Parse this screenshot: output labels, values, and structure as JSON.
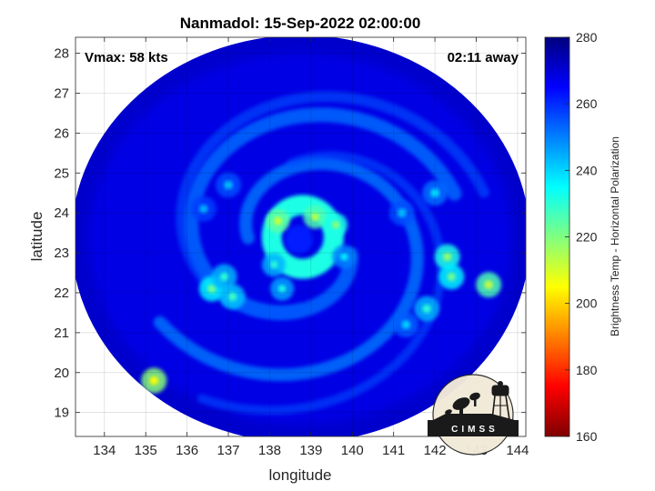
{
  "chart_data": {
    "type": "heatmap",
    "title": "Nanmadol: 15-Sep-2022 02:00:00",
    "xlabel": "longitude",
    "ylabel": "latitude",
    "xlim": [
      133.3,
      144.2
    ],
    "ylim": [
      18.4,
      28.4
    ],
    "x_ticks": [
      134,
      135,
      136,
      137,
      138,
      139,
      140,
      141,
      142,
      143,
      144
    ],
    "y_ticks": [
      19,
      20,
      21,
      22,
      23,
      24,
      25,
      26,
      27,
      28
    ],
    "grid": true,
    "annotations": {
      "vmax": "Vmax: 58 kts",
      "time_offset": "02:11 away"
    },
    "colorbar": {
      "label": "Brightness Temp - Horizontal Polarization",
      "range": [
        160,
        280
      ],
      "ticks": [
        160,
        180,
        200,
        220,
        240,
        260,
        280
      ],
      "colormap": "jet",
      "colors": [
        "#7f0000",
        "#ff0000",
        "#ff8000",
        "#ffff00",
        "#80ff80",
        "#00ffff",
        "#0080ff",
        "#0000ff",
        "#00007f"
      ]
    },
    "swath": {
      "center_lon": 138.75,
      "center_lat": 23.35,
      "radius_lon": 5.55,
      "radius_lat": 5.1
    },
    "storm_center": {
      "lon": 138.75,
      "lat": 23.3
    },
    "background_temp": 268,
    "features": [
      {
        "kind": "eyewall",
        "lon": 138.8,
        "lat": 23.4,
        "radius_lon": 0.75,
        "radius_lat": 0.8,
        "temp": 232
      },
      {
        "kind": "hotspot",
        "lon": 138.2,
        "lat": 23.8,
        "temp": 210
      },
      {
        "kind": "hotspot",
        "lon": 139.1,
        "lat": 23.9,
        "temp": 212
      },
      {
        "kind": "hotspot",
        "lon": 139.6,
        "lat": 23.7,
        "temp": 218
      },
      {
        "kind": "hotspot",
        "lon": 138.1,
        "lat": 22.7,
        "temp": 230
      },
      {
        "kind": "hotspot",
        "lon": 139.8,
        "lat": 22.9,
        "temp": 236
      },
      {
        "kind": "hotspot",
        "lon": 138.3,
        "lat": 22.1,
        "temp": 232
      },
      {
        "kind": "band",
        "lon": 136.6,
        "lat": 22.1,
        "temp": 222
      },
      {
        "kind": "band",
        "lon": 136.9,
        "lat": 22.4,
        "temp": 230
      },
      {
        "kind": "band",
        "lon": 137.1,
        "lat": 21.9,
        "temp": 228
      },
      {
        "kind": "band",
        "lon": 142.3,
        "lat": 22.9,
        "temp": 218
      },
      {
        "kind": "band",
        "lon": 142.4,
        "lat": 22.4,
        "temp": 222
      },
      {
        "kind": "band",
        "lon": 143.3,
        "lat": 22.2,
        "temp": 212
      },
      {
        "kind": "band",
        "lon": 141.8,
        "lat": 21.6,
        "temp": 230
      },
      {
        "kind": "band",
        "lon": 141.3,
        "lat": 21.2,
        "temp": 240
      },
      {
        "kind": "band",
        "lon": 142.0,
        "lat": 24.5,
        "temp": 238
      },
      {
        "kind": "band",
        "lon": 141.2,
        "lat": 24.0,
        "temp": 242
      },
      {
        "kind": "band",
        "lon": 135.2,
        "lat": 19.8,
        "temp": 205
      },
      {
        "kind": "band",
        "lon": 137.0,
        "lat": 24.7,
        "temp": 242
      },
      {
        "kind": "band",
        "lon": 136.4,
        "lat": 24.1,
        "temp": 244
      }
    ]
  },
  "logo": {
    "text": "CIMSS"
  }
}
